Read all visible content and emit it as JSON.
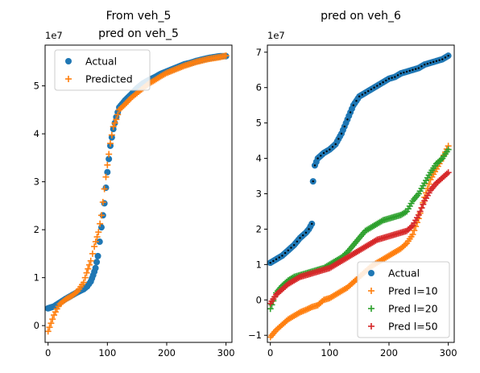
{
  "chart_data": [
    {
      "type": "scatter",
      "title_lines": [
        "From veh_5",
        "pred on veh_5"
      ],
      "xlabel": "",
      "ylabel": "",
      "y_offset_label": "1e7",
      "xlim": [
        -5,
        310
      ],
      "ylim": [
        -0.35,
        5.85
      ],
      "x_ticks": [
        0,
        100,
        200,
        300
      ],
      "y_ticks": [
        0,
        1,
        2,
        3,
        4,
        5
      ],
      "legend": {
        "placement": "upper-left",
        "entries": [
          "Actual",
          "Predicted"
        ]
      },
      "series": [
        {
          "name": "Actual",
          "marker": "circle",
          "color": "#1f77b4",
          "points": [
            [
              0,
              0.36
            ],
            [
              10,
              0.4
            ],
            [
              20,
              0.48
            ],
            [
              30,
              0.56
            ],
            [
              40,
              0.63
            ],
            [
              50,
              0.7
            ],
            [
              60,
              0.76
            ],
            [
              66,
              0.82
            ],
            [
              72,
              0.92
            ],
            [
              76,
              1.05
            ],
            [
              80,
              1.2
            ],
            [
              84,
              1.45
            ],
            [
              90,
              2.05
            ],
            [
              95,
              2.55
            ],
            [
              100,
              3.2
            ],
            [
              105,
              3.75
            ],
            [
              110,
              4.1
            ],
            [
              115,
              4.35
            ],
            [
              120,
              4.55
            ],
            [
              130,
              4.7
            ],
            [
              140,
              4.82
            ],
            [
              150,
              4.95
            ],
            [
              160,
              5.05
            ],
            [
              170,
              5.12
            ],
            [
              180,
              5.18
            ],
            [
              190,
              5.25
            ],
            [
              200,
              5.3
            ],
            [
              210,
              5.35
            ],
            [
              220,
              5.4
            ],
            [
              230,
              5.45
            ],
            [
              240,
              5.48
            ],
            [
              250,
              5.52
            ],
            [
              260,
              5.55
            ],
            [
              270,
              5.58
            ],
            [
              280,
              5.6
            ],
            [
              290,
              5.62
            ],
            [
              300,
              5.62
            ]
          ]
        },
        {
          "name": "Predicted",
          "marker": "plus",
          "color": "#ff7f0e",
          "points": [
            [
              0,
              -0.12
            ],
            [
              5,
              0.05
            ],
            [
              10,
              0.22
            ],
            [
              15,
              0.35
            ],
            [
              20,
              0.45
            ],
            [
              30,
              0.55
            ],
            [
              40,
              0.62
            ],
            [
              50,
              0.72
            ],
            [
              60,
              0.9
            ],
            [
              65,
              1.1
            ],
            [
              72,
              1.35
            ],
            [
              78,
              1.65
            ],
            [
              85,
              1.95
            ],
            [
              90,
              2.3
            ],
            [
              95,
              2.85
            ],
            [
              100,
              3.35
            ],
            [
              105,
              3.8
            ],
            [
              110,
              4.15
            ],
            [
              115,
              4.3
            ],
            [
              120,
              4.5
            ],
            [
              130,
              4.62
            ],
            [
              140,
              4.75
            ],
            [
              150,
              4.85
            ],
            [
              160,
              4.95
            ],
            [
              170,
              5.05
            ],
            [
              180,
              5.12
            ],
            [
              190,
              5.2
            ],
            [
              200,
              5.27
            ],
            [
              210,
              5.32
            ],
            [
              220,
              5.37
            ],
            [
              230,
              5.42
            ],
            [
              240,
              5.46
            ],
            [
              250,
              5.5
            ],
            [
              260,
              5.53
            ],
            [
              270,
              5.56
            ],
            [
              280,
              5.58
            ],
            [
              290,
              5.6
            ],
            [
              300,
              5.63
            ]
          ]
        }
      ]
    },
    {
      "type": "scatter",
      "title_lines": [
        "pred on veh_6"
      ],
      "xlabel": "",
      "ylabel": "",
      "y_offset_label": "1e7",
      "xlim": [
        -5,
        310
      ],
      "ylim": [
        -1.2,
        7.2
      ],
      "x_ticks": [
        0,
        100,
        200,
        300
      ],
      "y_ticks": [
        -1,
        0,
        1,
        2,
        3,
        4,
        5,
        6,
        7
      ],
      "legend": {
        "placement": "lower-right",
        "entries": [
          "Actual",
          "Pred l=10",
          "Pred l=20",
          "Pred l=50"
        ]
      },
      "series": [
        {
          "name": "Actual",
          "marker": "circle",
          "color": "#1f77b4",
          "points": [
            [
              0,
              1.05
            ],
            [
              10,
              1.15
            ],
            [
              20,
              1.25
            ],
            [
              30,
              1.4
            ],
            [
              40,
              1.55
            ],
            [
              50,
              1.75
            ],
            [
              60,
              1.9
            ],
            [
              65,
              2.0
            ],
            [
              70,
              2.15
            ],
            [
              72,
              3.35
            ],
            [
              75,
              3.8
            ],
            [
              80,
              4.0
            ],
            [
              90,
              4.15
            ],
            [
              100,
              4.25
            ],
            [
              110,
              4.4
            ],
            [
              120,
              4.7
            ],
            [
              130,
              5.1
            ],
            [
              140,
              5.5
            ],
            [
              150,
              5.75
            ],
            [
              160,
              5.85
            ],
            [
              170,
              5.95
            ],
            [
              180,
              6.05
            ],
            [
              190,
              6.15
            ],
            [
              200,
              6.25
            ],
            [
              210,
              6.3
            ],
            [
              220,
              6.4
            ],
            [
              230,
              6.45
            ],
            [
              240,
              6.5
            ],
            [
              250,
              6.55
            ],
            [
              260,
              6.65
            ],
            [
              270,
              6.7
            ],
            [
              280,
              6.75
            ],
            [
              290,
              6.8
            ],
            [
              295,
              6.85
            ],
            [
              300,
              6.9
            ]
          ]
        },
        {
          "name": "Pred l=10",
          "marker": "plus",
          "color": "#ff7f0e",
          "points": [
            [
              0,
              -1.05
            ],
            [
              10,
              -0.85
            ],
            [
              20,
              -0.7
            ],
            [
              30,
              -0.55
            ],
            [
              40,
              -0.45
            ],
            [
              50,
              -0.35
            ],
            [
              60,
              -0.28
            ],
            [
              70,
              -0.2
            ],
            [
              80,
              -0.15
            ],
            [
              90,
              0.0
            ],
            [
              100,
              0.05
            ],
            [
              110,
              0.15
            ],
            [
              120,
              0.25
            ],
            [
              130,
              0.35
            ],
            [
              140,
              0.5
            ],
            [
              150,
              0.65
            ],
            [
              160,
              0.8
            ],
            [
              170,
              0.95
            ],
            [
              180,
              1.05
            ],
            [
              190,
              1.15
            ],
            [
              200,
              1.25
            ],
            [
              210,
              1.35
            ],
            [
              220,
              1.45
            ],
            [
              230,
              1.6
            ],
            [
              240,
              1.85
            ],
            [
              250,
              2.3
            ],
            [
              260,
              2.9
            ],
            [
              270,
              3.4
            ],
            [
              280,
              3.7
            ],
            [
              290,
              4.0
            ],
            [
              300,
              4.35
            ]
          ]
        },
        {
          "name": "Pred l=20",
          "marker": "plus",
          "color": "#2ca02c",
          "points": [
            [
              0,
              -0.25
            ],
            [
              10,
              0.2
            ],
            [
              20,
              0.4
            ],
            [
              30,
              0.55
            ],
            [
              40,
              0.65
            ],
            [
              50,
              0.7
            ],
            [
              60,
              0.75
            ],
            [
              70,
              0.8
            ],
            [
              80,
              0.85
            ],
            [
              90,
              0.9
            ],
            [
              100,
              1.0
            ],
            [
              110,
              1.1
            ],
            [
              120,
              1.2
            ],
            [
              130,
              1.35
            ],
            [
              140,
              1.55
            ],
            [
              150,
              1.75
            ],
            [
              160,
              1.95
            ],
            [
              170,
              2.05
            ],
            [
              180,
              2.15
            ],
            [
              190,
              2.25
            ],
            [
              200,
              2.3
            ],
            [
              210,
              2.35
            ],
            [
              220,
              2.4
            ],
            [
              230,
              2.5
            ],
            [
              240,
              2.8
            ],
            [
              250,
              3.0
            ],
            [
              260,
              3.3
            ],
            [
              270,
              3.6
            ],
            [
              280,
              3.85
            ],
            [
              290,
              4.0
            ],
            [
              300,
              4.25
            ]
          ]
        },
        {
          "name": "Pred l=50",
          "marker": "plus",
          "color": "#d62728",
          "points": [
            [
              0,
              -0.1
            ],
            [
              10,
              0.15
            ],
            [
              20,
              0.3
            ],
            [
              30,
              0.45
            ],
            [
              40,
              0.55
            ],
            [
              50,
              0.65
            ],
            [
              60,
              0.7
            ],
            [
              70,
              0.75
            ],
            [
              80,
              0.8
            ],
            [
              90,
              0.85
            ],
            [
              100,
              0.9
            ],
            [
              110,
              1.0
            ],
            [
              120,
              1.1
            ],
            [
              130,
              1.2
            ],
            [
              140,
              1.3
            ],
            [
              150,
              1.4
            ],
            [
              160,
              1.5
            ],
            [
              170,
              1.6
            ],
            [
              180,
              1.7
            ],
            [
              190,
              1.75
            ],
            [
              200,
              1.8
            ],
            [
              210,
              1.85
            ],
            [
              220,
              1.9
            ],
            [
              230,
              1.95
            ],
            [
              240,
              2.1
            ],
            [
              250,
              2.4
            ],
            [
              260,
              2.8
            ],
            [
              270,
              3.1
            ],
            [
              280,
              3.3
            ],
            [
              290,
              3.45
            ],
            [
              300,
              3.6
            ]
          ]
        }
      ]
    }
  ]
}
